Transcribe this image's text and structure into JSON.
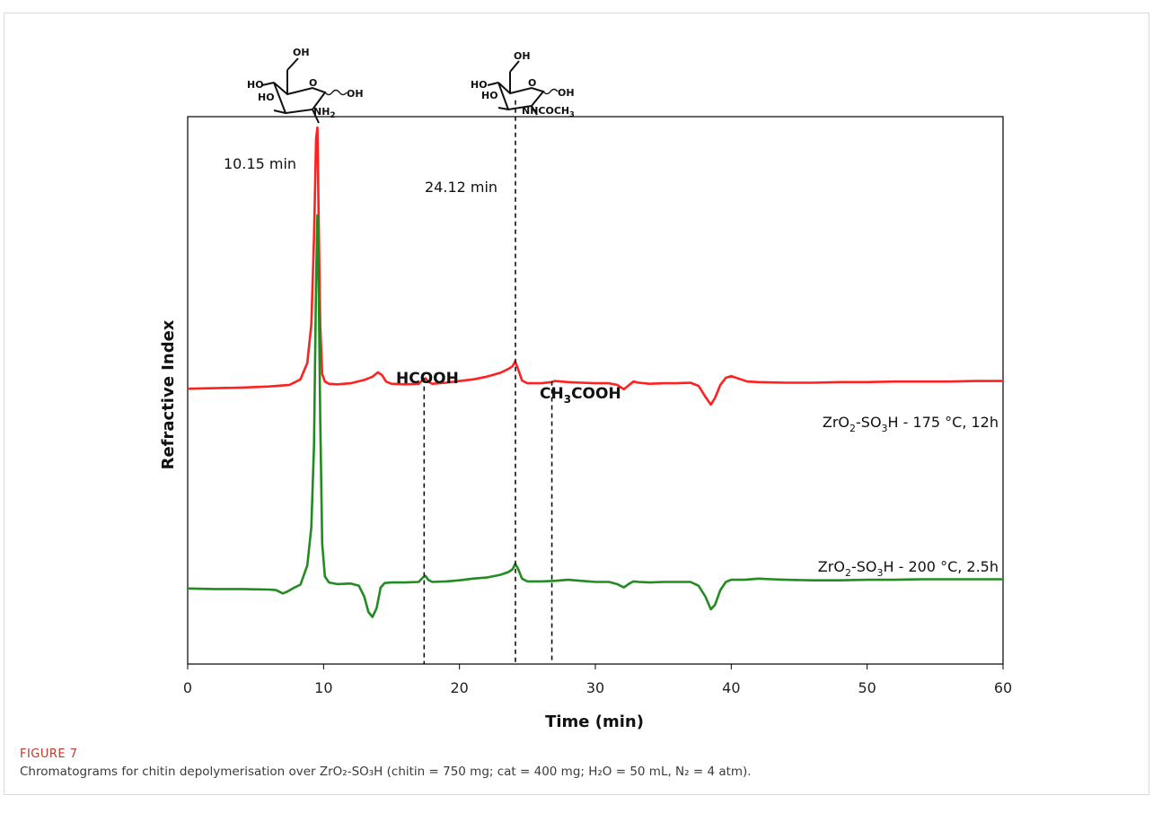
{
  "chart_data": {
    "type": "line",
    "xlabel": "Time (min)",
    "ylabel": "Refractive Index",
    "xlim": [
      0,
      60
    ],
    "ylim": [
      0,
      100
    ],
    "xticks": [
      0,
      10,
      20,
      30,
      40,
      50,
      60
    ],
    "grid": false,
    "series": [
      {
        "name": "ZrO2-SO3H - 175 °C, 12h",
        "name_parts": {
          "a": "ZrO",
          "a_sub": "2",
          "b": "-SO",
          "b_sub": "3",
          "c": "H - 175 °C, 12h"
        },
        "color": "#ff2020",
        "x": [
          0,
          2,
          4,
          6,
          7.5,
          8.3,
          8.8,
          9.1,
          9.3,
          9.45,
          9.55,
          9.65,
          9.75,
          9.9,
          10.1,
          10.4,
          11,
          12,
          13,
          13.6,
          14,
          14.3,
          14.6,
          15,
          16,
          17,
          17.3,
          17.5,
          17.7,
          18,
          19,
          20,
          21,
          22,
          23,
          23.6,
          23.9,
          24.1,
          24.3,
          24.6,
          25,
          26,
          26.8,
          27,
          28,
          29,
          30,
          31,
          31.6,
          32.1,
          32.5,
          32.8,
          33.2,
          34,
          35,
          36,
          37,
          37.6,
          38.1,
          38.5,
          38.8,
          39.2,
          39.6,
          40,
          40.6,
          41.2,
          42,
          44,
          46,
          48,
          50,
          52,
          54,
          56,
          58,
          60
        ],
        "y": [
          50.3,
          50.4,
          50.5,
          50.7,
          51,
          52,
          55,
          62,
          78,
          96,
          98,
          80,
          62,
          53,
          51.6,
          51.2,
          51.1,
          51.3,
          51.9,
          52.5,
          53.3,
          52.8,
          51.6,
          51.2,
          51.1,
          51.2,
          51.9,
          52.2,
          51.6,
          51.2,
          51.4,
          51.7,
          52,
          52.5,
          53.2,
          53.9,
          54.4,
          55.3,
          54,
          51.8,
          51.3,
          51.3,
          51.5,
          51.7,
          51.5,
          51.4,
          51.3,
          51.3,
          51,
          50.2,
          51,
          51.6,
          51.4,
          51.2,
          51.3,
          51.3,
          51.4,
          50.8,
          48.8,
          47.4,
          48.6,
          51,
          52.3,
          52.6,
          52.1,
          51.6,
          51.5,
          51.4,
          51.4,
          51.5,
          51.5,
          51.6,
          51.6,
          51.6,
          51.7,
          51.7
        ]
      },
      {
        "name": "ZrO2-SO3H - 200 °C, 2.5h",
        "name_parts": {
          "a": "ZrO",
          "a_sub": "2",
          "b": "-SO",
          "b_sub": "3",
          "c": "H - 200 °C, 2.5h"
        },
        "color": "#228b22",
        "x": [
          0,
          2,
          4,
          6,
          6.5,
          7,
          7.3,
          7.8,
          8.3,
          8.8,
          9.1,
          9.3,
          9.45,
          9.55,
          9.65,
          9.75,
          9.9,
          10.1,
          10.4,
          11,
          12,
          12.6,
          13,
          13.3,
          13.6,
          13.9,
          14.2,
          14.5,
          15,
          16,
          17,
          17.3,
          17.5,
          17.7,
          18,
          19,
          20,
          21,
          22,
          23,
          23.6,
          23.9,
          24.1,
          24.3,
          24.6,
          25,
          26,
          27,
          28,
          29,
          30,
          31,
          31.6,
          32.1,
          32.5,
          32.8,
          33.2,
          34,
          35,
          36,
          37,
          37.6,
          38.1,
          38.5,
          38.8,
          39.2,
          39.6,
          40,
          41,
          42,
          43,
          44,
          46,
          48,
          50,
          52,
          54,
          56,
          58,
          60
        ],
        "y": [
          13.8,
          13.7,
          13.7,
          13.6,
          13.5,
          12.9,
          13.2,
          13.9,
          14.5,
          18,
          25,
          40,
          70,
          82,
          68,
          45,
          22,
          16,
          14.9,
          14.6,
          14.7,
          14.3,
          12.3,
          9.5,
          8.6,
          10.2,
          14,
          14.8,
          14.9,
          14.9,
          15,
          15.8,
          16.1,
          15.4,
          15,
          15.1,
          15.3,
          15.6,
          15.8,
          16.3,
          16.8,
          17.3,
          18.3,
          17.5,
          15.6,
          15.1,
          15.1,
          15.2,
          15.4,
          15.2,
          15,
          15,
          14.6,
          14,
          14.7,
          15.1,
          15,
          14.9,
          15,
          15,
          15,
          14.3,
          12.3,
          10,
          10.8,
          13.5,
          15,
          15.4,
          15.4,
          15.6,
          15.5,
          15.4,
          15.3,
          15.3,
          15.4,
          15.4,
          15.5,
          15.5,
          15.5,
          15.5
        ]
      }
    ],
    "annotations": {
      "peak1_label": "10.15 min",
      "peak2_label": "24.12 min",
      "formic_label": "HCOOH",
      "acetic_parts": {
        "a": "CH",
        "a_sub": "3",
        "b": "COOH"
      },
      "dashed_lines_x": [
        17.4,
        24.12,
        26.8
      ],
      "structure1_labels": [
        "OH",
        "O",
        "HO",
        "HO",
        "OH",
        "NH",
        "2"
      ],
      "structure2_labels": [
        "OH",
        "O",
        "HO",
        "HO",
        "OH",
        "NHCOCH",
        "3"
      ]
    }
  },
  "caption": {
    "figure_label": "FIGURE 7",
    "text": "Chromatograms for chitin depolymerisation over ZrO₂-SO₃H (chitin = 750 mg; cat = 400 mg; H₂O = 50 mL, N₂ = 4 atm)."
  }
}
